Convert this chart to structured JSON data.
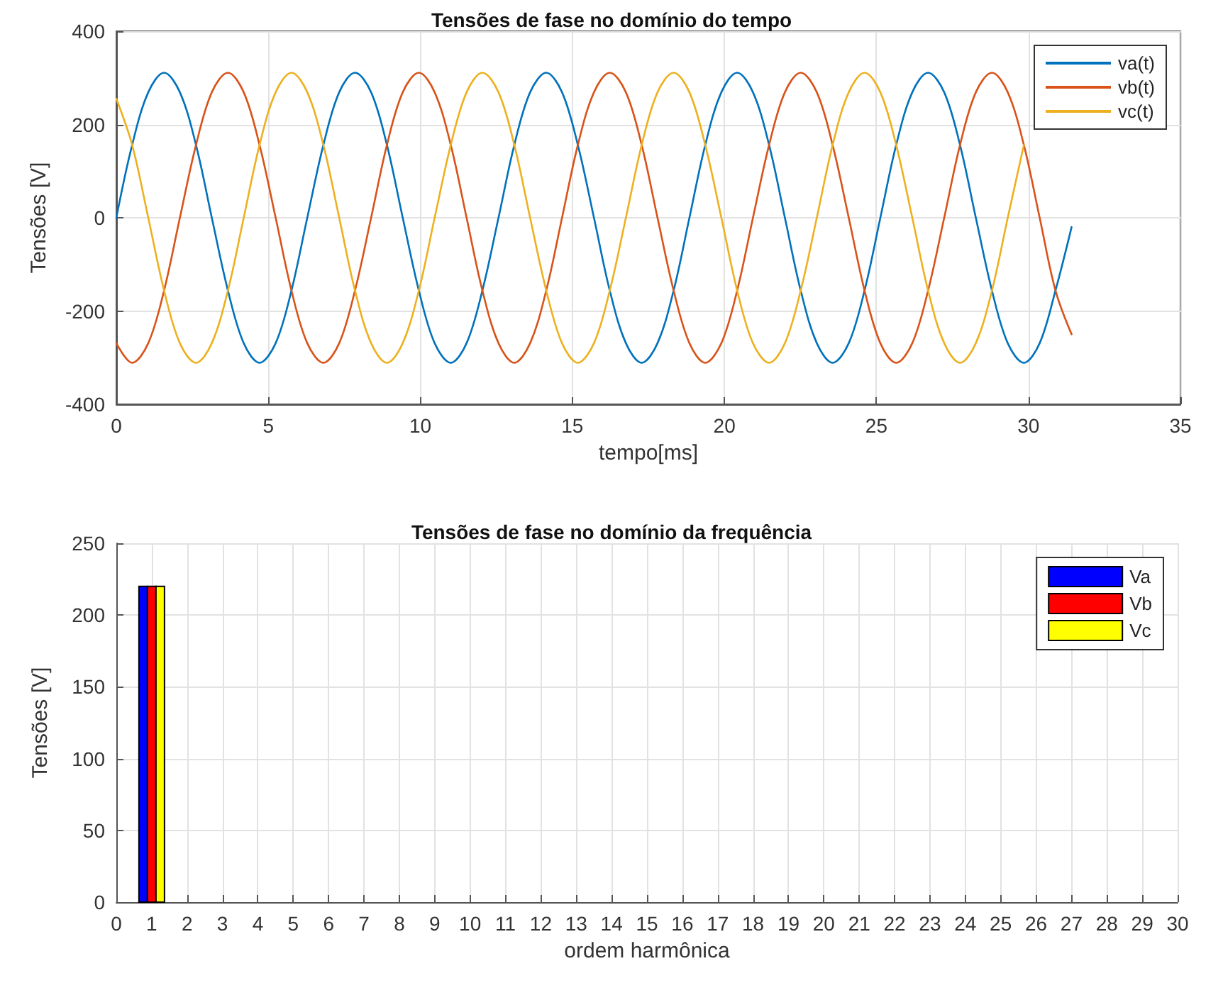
{
  "chart_data": [
    {
      "type": "line",
      "title": "Tensões de fase no domínio do tempo",
      "xlabel": "tempo[ms]",
      "ylabel": "Tensões [V]",
      "x": [
        0,
        0.52,
        1.05,
        1.57,
        2.09,
        2.62,
        3.14,
        3.67,
        4.19,
        4.71,
        5.24,
        5.76,
        6.28,
        6.81,
        7.33,
        7.85,
        8.38,
        8.9,
        9.42,
        9.95,
        10.47,
        11,
        11.52,
        12.04,
        12.57,
        13.09,
        13.61,
        14.14,
        14.66,
        15.18,
        15.71,
        16.23,
        16.76,
        17.28,
        17.8,
        18.33,
        18.85,
        19.37,
        19.9,
        20.42,
        20.94,
        21.47,
        21.99,
        22.51,
        23.04,
        23.56,
        24.09,
        24.61,
        25.13,
        25.65,
        26.18,
        26.7,
        27.23,
        27.75,
        28.27,
        28.8,
        29.32,
        29.85,
        30.37,
        30.89,
        31.42
      ],
      "series": [
        {
          "name": "va(t)",
          "color": "#0072bd",
          "values": [
            0,
            156,
            269,
            311,
            269,
            156,
            0,
            -156,
            -269,
            -311,
            -269,
            -156,
            0,
            156,
            269,
            311,
            269,
            156,
            0,
            -156,
            -269,
            -311,
            -269,
            -156,
            0,
            156,
            269,
            311,
            269,
            156,
            0,
            -156,
            -269,
            -311,
            -269,
            -156,
            0,
            156,
            269,
            311,
            269,
            156,
            0,
            -156,
            -269,
            -311,
            -269,
            -156,
            0,
            156,
            269,
            311,
            269,
            156,
            0,
            -156,
            -269,
            -311,
            -269,
            -156,
            -20
          ]
        },
        {
          "name": "vb(t)",
          "color": "#d95319",
          "values": [
            -269,
            -311,
            -269,
            -156,
            0,
            156,
            269,
            311,
            269,
            156,
            0,
            -156,
            -269,
            -311,
            -269,
            -156,
            0,
            156,
            269,
            311,
            269,
            156,
            0,
            -156,
            -269,
            -311,
            -269,
            -156,
            0,
            156,
            269,
            311,
            269,
            156,
            0,
            -156,
            -269,
            -311,
            -269,
            -156,
            0,
            156,
            269,
            311,
            269,
            156,
            0,
            -156,
            -269,
            -311,
            -269,
            -156,
            0,
            156,
            269,
            311,
            269,
            156,
            0,
            -156,
            -250
          ]
        },
        {
          "name": "vc(t)",
          "color": "#edb120",
          "values": [
            255,
            156,
            0,
            -156,
            -269,
            -311,
            -269,
            -156,
            0,
            156,
            269,
            311,
            269,
            156,
            0,
            -156,
            -269,
            -311,
            -269,
            -156,
            0,
            156,
            269,
            311,
            269,
            156,
            0,
            -156,
            -269,
            -311,
            -269,
            -156,
            0,
            156,
            269,
            311,
            269,
            156,
            0,
            -156,
            -269,
            -311,
            -269,
            -156,
            0,
            156,
            269,
            311,
            269,
            156,
            0,
            -156,
            -269,
            -311,
            -269,
            -156,
            0,
            156,
            null,
            null,
            null
          ]
        }
      ],
      "xlim": [
        0,
        35
      ],
      "xticks": [
        0,
        5,
        10,
        15,
        20,
        25,
        30,
        35
      ],
      "ylim": [
        -400,
        400
      ],
      "yticks": [
        -400,
        -200,
        0,
        200,
        400
      ],
      "grid": true,
      "legend": "top right"
    },
    {
      "type": "bar",
      "title": "Tensões de fase no domínio da frequência",
      "xlabel": "ordem harmônica",
      "ylabel": "Tensões [V]",
      "series": [
        {
          "name": "Va",
          "color": "#0000ff",
          "values": [
            220
          ]
        },
        {
          "name": "Vb",
          "color": "#ff0000",
          "values": [
            220
          ]
        },
        {
          "name": "Vc",
          "color": "#ffff00",
          "values": [
            220
          ]
        }
      ],
      "x": [
        1
      ],
      "xlim": [
        0,
        30
      ],
      "xticks": [
        0,
        1,
        2,
        3,
        4,
        5,
        6,
        7,
        8,
        9,
        10,
        11,
        12,
        13,
        14,
        15,
        16,
        17,
        18,
        19,
        20,
        21,
        22,
        23,
        24,
        25,
        26,
        27,
        28,
        29,
        30
      ],
      "ylim": [
        0,
        250
      ],
      "yticks": [
        0,
        50,
        100,
        150,
        200,
        250
      ],
      "grid": true,
      "legend": "top right"
    }
  ]
}
